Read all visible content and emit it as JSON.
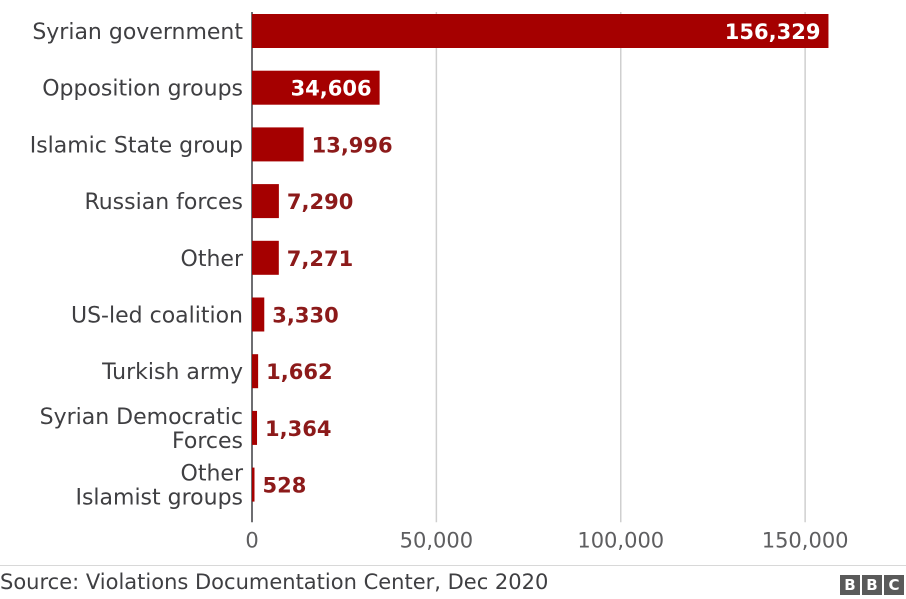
{
  "chart_data": {
    "type": "bar",
    "orientation": "horizontal",
    "categories": [
      [
        "Syrian government"
      ],
      [
        "Opposition groups"
      ],
      [
        "Islamic State group"
      ],
      [
        "Russian forces"
      ],
      [
        "Other"
      ],
      [
        "US-led coalition"
      ],
      [
        "Turkish army"
      ],
      [
        "Syrian Democratic",
        "Forces"
      ],
      [
        "Other",
        "Islamist groups"
      ]
    ],
    "values": [
      156329,
      34606,
      13996,
      7290,
      7271,
      3330,
      1662,
      1364,
      528
    ],
    "value_labels": [
      "156,329",
      "34,606",
      "13,996",
      "7,290",
      "7,271",
      "3,330",
      "1,662",
      "1,364",
      "528"
    ],
    "xlim": [
      0,
      160000
    ],
    "xticks": [
      0,
      50000,
      100000,
      150000
    ],
    "xtick_labels": [
      "0",
      "50,000",
      "100,000",
      "150,000"
    ],
    "grid": "vertical",
    "bar_color": "#a50000",
    "label_color_inside": "#ffffff",
    "label_color_outside": "#8c1a1a"
  },
  "footer": {
    "source": "Source: Violations Documentation Center, Dec 2020",
    "logo_letters": [
      "B",
      "B",
      "C"
    ]
  }
}
